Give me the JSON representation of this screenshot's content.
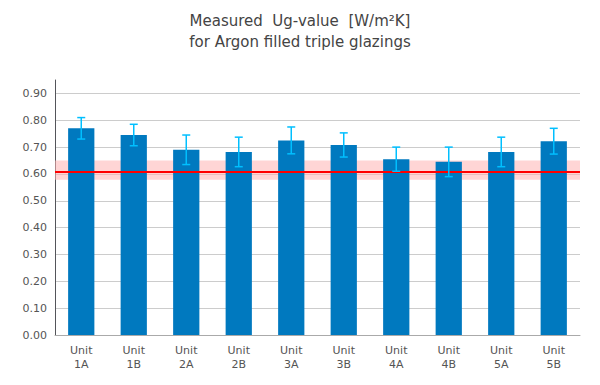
{
  "chart_data": {
    "type": "bar",
    "title": "Measured  Ug-value  [W/m²K]",
    "subtitle": "for Argon filled triple glazings",
    "categories": [
      "Unit\n1A",
      "Unit\n1B",
      "Unit\n2A",
      "Unit\n2B",
      "Unit\n3A",
      "Unit\n3B",
      "Unit\n4A",
      "Unit\n4B",
      "Unit\n5A",
      "Unit\n5B"
    ],
    "values": [
      0.77,
      0.745,
      0.69,
      0.682,
      0.725,
      0.708,
      0.655,
      0.645,
      0.682,
      0.722
    ],
    "errors": [
      0.04,
      0.04,
      0.055,
      0.055,
      0.05,
      0.045,
      0.045,
      0.055,
      0.055,
      0.048
    ],
    "color": "#0079BF",
    "error_color": "#00BFFF",
    "ref_line": {
      "value": 0.614,
      "color": "#FF0000"
    },
    "ref_band": {
      "lower": 0.578,
      "upper": 0.65,
      "color": "#FFB3B3"
    },
    "ylim": [
      0.0,
      0.95
    ],
    "yticks": [
      {
        "value": 0.0,
        "label": "0.00"
      },
      {
        "value": 0.1,
        "label": "0.10"
      },
      {
        "value": 0.2,
        "label": "0.20"
      },
      {
        "value": 0.3,
        "label": "0.30"
      },
      {
        "value": 0.4,
        "label": "0.40"
      },
      {
        "value": 0.5,
        "label": "0.50"
      },
      {
        "value": 0.6,
        "label": "0.60"
      },
      {
        "value": 0.7,
        "label": "0.70"
      },
      {
        "value": 0.8,
        "label": "0.80"
      },
      {
        "value": 0.9,
        "label": "0.90"
      }
    ],
    "grid": true
  }
}
